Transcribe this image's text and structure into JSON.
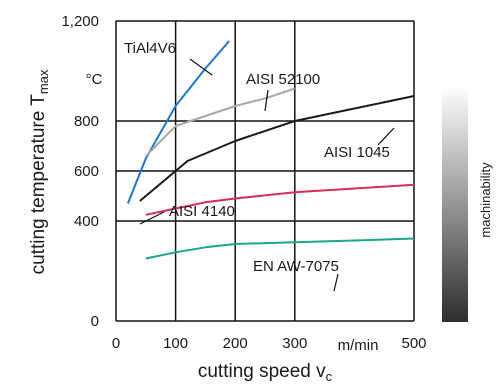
{
  "chart_data": {
    "type": "line",
    "xlabel": "cutting speed v",
    "xlabel_sub": "c",
    "ylabel": "cutting temperature T",
    "ylabel_sub": "max",
    "x_unit": "m/min",
    "y_unit": "°C",
    "xlim": [
      0,
      500
    ],
    "ylim": [
      0,
      1200
    ],
    "x_ticks": [
      "0",
      "100",
      "200",
      "300",
      "500"
    ],
    "y_ticks": [
      "0",
      "400",
      "600",
      "800",
      "1,200"
    ],
    "grid": true,
    "series": [
      {
        "name": "TiAl4V6",
        "color": "#1f78c8",
        "points": [
          [
            20,
            470
          ],
          [
            50,
            650
          ],
          [
            100,
            860
          ],
          [
            150,
            1010
          ],
          [
            190,
            1120
          ]
        ]
      },
      {
        "name": "AISI 52100",
        "color": "#a8a8a8",
        "points": [
          [
            50,
            660
          ],
          [
            100,
            780
          ],
          [
            150,
            820
          ],
          [
            200,
            860
          ],
          [
            250,
            890
          ],
          [
            300,
            930
          ]
        ]
      },
      {
        "name": "AISI 1045",
        "color": "#1a1a1a",
        "points": [
          [
            40,
            480
          ],
          [
            80,
            560
          ],
          [
            120,
            640
          ],
          [
            200,
            720
          ],
          [
            300,
            800
          ],
          [
            400,
            850
          ],
          [
            500,
            900
          ]
        ]
      },
      {
        "name": "AISI 4140",
        "color": "#d42e5a",
        "points": [
          [
            50,
            425
          ],
          [
            100,
            450
          ],
          [
            150,
            475
          ],
          [
            200,
            490
          ],
          [
            300,
            515
          ],
          [
            400,
            530
          ],
          [
            500,
            545
          ]
        ]
      },
      {
        "name": "EN AW-7075",
        "color": "#1aa88a",
        "points": [
          [
            50,
            250
          ],
          [
            100,
            275
          ],
          [
            150,
            295
          ],
          [
            200,
            308
          ],
          [
            300,
            315
          ],
          [
            400,
            322
          ],
          [
            500,
            330
          ]
        ]
      }
    ],
    "side_label": "machinability"
  }
}
